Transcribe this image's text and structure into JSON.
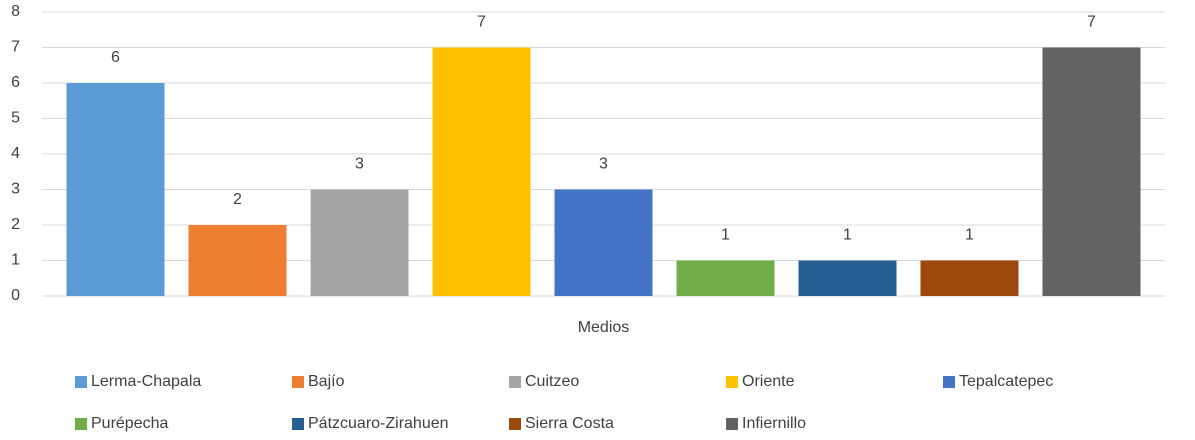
{
  "chart_data": {
    "type": "bar",
    "categories": [
      "Medios"
    ],
    "series": [
      {
        "name": "Lerma-Chapala",
        "color": "#5b9bd5",
        "values": [
          6
        ]
      },
      {
        "name": "Bajío",
        "color": "#ed7d31",
        "values": [
          2
        ]
      },
      {
        "name": "Cuitzeo",
        "color": "#a5a5a5",
        "values": [
          3
        ]
      },
      {
        "name": "Oriente",
        "color": "#ffc000",
        "values": [
          7
        ]
      },
      {
        "name": "Tepalcatepec",
        "color": "#4472c4",
        "values": [
          3
        ]
      },
      {
        "name": "Purépecha",
        "color": "#70ad47",
        "values": [
          1
        ]
      },
      {
        "name": "Pátzcuaro-Zirahuen",
        "color": "#255e91",
        "values": [
          1
        ]
      },
      {
        "name": "Sierra Costa",
        "color": "#9e480e",
        "values": [
          1
        ]
      },
      {
        "name": "Infiernillo",
        "color": "#636363",
        "values": [
          7
        ]
      }
    ],
    "ylim": [
      0,
      8
    ],
    "yticks": [
      0,
      1,
      2,
      3,
      4,
      5,
      6,
      7,
      8
    ],
    "grid": true,
    "legend": "bottom"
  }
}
